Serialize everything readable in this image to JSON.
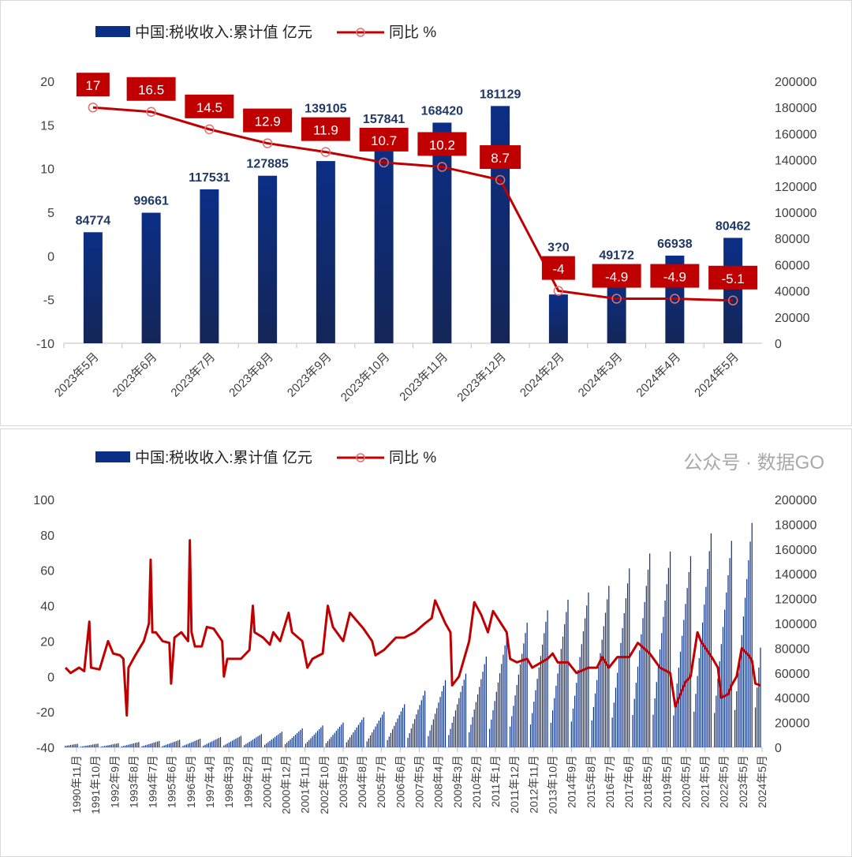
{
  "colors": {
    "bar": "#0b2e86",
    "bar_dark": "#142657",
    "line": "#c00000",
    "marker": "#e07070",
    "axis_text": "#404040",
    "label_navy": "#1f3864"
  },
  "watermark": "公众号 · 数据GO",
  "chart_data": [
    {
      "type": "bar+line",
      "legend": {
        "placement": "top",
        "bar": "中国:税收收入:累计值 亿元",
        "line": "同比 %"
      },
      "categories": [
        "2023年5月",
        "2023年6月",
        "2023年7月",
        "2023年8月",
        "2023年9月",
        "2023年10月",
        "2023年11月",
        "2023年12月",
        "2024年2月",
        "2024年3月",
        "2024年4月",
        "2024年5月"
      ],
      "bar_values": [
        84774,
        99661,
        117531,
        127885,
        139105,
        157841,
        168420,
        181129,
        37250,
        49172,
        66938,
        80462
      ],
      "bar_labels": [
        "84774",
        "99661",
        "117531",
        "127885",
        "139105",
        "157841",
        "168420",
        "181129",
        "3?0",
        "49172",
        "66938",
        "80462"
      ],
      "line_values": [
        17,
        16.5,
        14.5,
        12.9,
        11.9,
        10.7,
        10.2,
        8.7,
        -4,
        -4.9,
        -4.9,
        -5.1
      ],
      "line_labels": [
        "17",
        "16.5",
        "14.5",
        "12.9",
        "11.9",
        "10.7",
        "10.2",
        "8.7",
        "-4",
        "-4.9",
        "-4.9",
        "-5.1"
      ],
      "left_axis": {
        "range": [
          -10,
          20
        ],
        "ticks": [
          "-10",
          "-5",
          "0",
          "5",
          "10",
          "15",
          "20"
        ]
      },
      "right_axis": {
        "range": [
          0,
          200000
        ],
        "ticks": [
          "0",
          "20000",
          "40000",
          "60000",
          "80000",
          "100000",
          "120000",
          "140000",
          "160000",
          "180000",
          "200000"
        ]
      },
      "grid": false
    },
    {
      "type": "bar+line",
      "legend": {
        "placement": "top",
        "bar": "中国:税收收入:累计值 亿元",
        "line": "同比 %"
      },
      "x_tick_labels": [
        "1990年11月",
        "1991年10月",
        "1992年9月",
        "1993年8月",
        "1994年7月",
        "1995年6月",
        "1996年5月",
        "1997年4月",
        "1998年3月",
        "1999年2月",
        "2000年1月",
        "2000年12月",
        "2001年11月",
        "2002年10月",
        "2003年9月",
        "2004年8月",
        "2005年7月",
        "2006年6月",
        "2007年5月",
        "2008年4月",
        "2009年3月",
        "2010年2月",
        "2011年1月",
        "2011年12月",
        "2012年11月",
        "2013年10月",
        "2014年9月",
        "2015年8月",
        "2016年7月",
        "2017年6月",
        "2018年5月",
        "2019年5月",
        "2020年5月",
        "2021年5月",
        "2022年5月",
        "2023年5月",
        "2024年5月"
      ],
      "annual_tax_revenue": {
        "1990": 2822,
        "1991": 2990,
        "1992": 3297,
        "1993": 4255,
        "1994": 5127,
        "1995": 6038,
        "1996": 6910,
        "1997": 8234,
        "1998": 9263,
        "1999": 10683,
        "2000": 12582,
        "2001": 15301,
        "2002": 17636,
        "2003": 20017,
        "2004": 24166,
        "2005": 28779,
        "2006": 34804,
        "2007": 45622,
        "2008": 54224,
        "2009": 59522,
        "2010": 73211,
        "2011": 89738,
        "2012": 100614,
        "2013": 110531,
        "2014": 119175,
        "2015": 124922,
        "2016": 130361,
        "2017": 144370,
        "2018": 156403,
        "2019": 157992,
        "2020": 154312,
        "2021": 172736,
        "2022": 166614,
        "2023": 181129,
        "2024": 80462
      },
      "yoy_series": [
        [
          "1990-05",
          5
        ],
        [
          "1990-08",
          2
        ],
        [
          "1991-01",
          5
        ],
        [
          "1991-04",
          3
        ],
        [
          "1991-07",
          31
        ],
        [
          "1991-08",
          5
        ],
        [
          "1992-01",
          4
        ],
        [
          "1992-06",
          20
        ],
        [
          "1992-09",
          13
        ],
        [
          "1993-01",
          12
        ],
        [
          "1993-03",
          10
        ],
        [
          "1993-05",
          -22
        ],
        [
          "1993-06",
          5
        ],
        [
          "1993-10",
          12
        ],
        [
          "1994-03",
          20
        ],
        [
          "1994-06",
          30
        ],
        [
          "1994-07",
          66
        ],
        [
          "1994-08",
          25
        ],
        [
          "1994-10",
          25
        ],
        [
          "1995-02",
          20
        ],
        [
          "1995-06",
          19
        ],
        [
          "1995-07",
          -4
        ],
        [
          "1995-09",
          22
        ],
        [
          "1996-01",
          25
        ],
        [
          "1996-05",
          20
        ],
        [
          "1996-06",
          77
        ],
        [
          "1996-07",
          25
        ],
        [
          "1996-09",
          17
        ],
        [
          "1997-01",
          17
        ],
        [
          "1997-04",
          28
        ],
        [
          "1997-08",
          27
        ],
        [
          "1998-01",
          20
        ],
        [
          "1998-02",
          0
        ],
        [
          "1998-04",
          10
        ],
        [
          "1998-12",
          10
        ],
        [
          "1999-05",
          15
        ],
        [
          "1999-07",
          40
        ],
        [
          "1999-08",
          25
        ],
        [
          "2000-01",
          22
        ],
        [
          "2000-05",
          18
        ],
        [
          "2000-07",
          25
        ],
        [
          "2000-11",
          20
        ],
        [
          "2001-04",
          36
        ],
        [
          "2001-06",
          25
        ],
        [
          "2001-12",
          20
        ],
        [
          "2002-03",
          5
        ],
        [
          "2002-06",
          10
        ],
        [
          "2002-12",
          13
        ],
        [
          "2003-03",
          40
        ],
        [
          "2003-06",
          28
        ],
        [
          "2003-12",
          20
        ],
        [
          "2004-04",
          36
        ],
        [
          "2004-12",
          27
        ],
        [
          "2005-05",
          20
        ],
        [
          "2005-07",
          12
        ],
        [
          "2005-12",
          15
        ],
        [
          "2006-07",
          22
        ],
        [
          "2006-12",
          22
        ],
        [
          "2007-06",
          25
        ],
        [
          "2007-12",
          30
        ],
        [
          "2008-04",
          33
        ],
        [
          "2008-06",
          43
        ],
        [
          "2008-12",
          30
        ],
        [
          "2009-03",
          25
        ],
        [
          "2009-04",
          -5
        ],
        [
          "2009-08",
          0
        ],
        [
          "2010-02",
          20
        ],
        [
          "2010-05",
          42
        ],
        [
          "2010-09",
          35
        ],
        [
          "2011-01",
          25
        ],
        [
          "2011-04",
          37
        ],
        [
          "2011-12",
          25
        ],
        [
          "2012-02",
          10
        ],
        [
          "2012-06",
          8
        ],
        [
          "2012-12",
          10
        ],
        [
          "2013-03",
          5
        ],
        [
          "2013-12",
          10
        ],
        [
          "2014-03",
          13
        ],
        [
          "2014-06",
          8
        ],
        [
          "2014-12",
          8
        ],
        [
          "2015-05",
          2
        ],
        [
          "2015-12",
          5
        ],
        [
          "2016-05",
          5
        ],
        [
          "2016-08",
          11
        ],
        [
          "2016-12",
          5
        ],
        [
          "2017-05",
          11
        ],
        [
          "2017-12",
          11
        ],
        [
          "2018-05",
          19
        ],
        [
          "2018-12",
          13
        ],
        [
          "2019-06",
          5
        ],
        [
          "2019-12",
          2
        ],
        [
          "2020-03",
          -17
        ],
        [
          "2020-06",
          -10
        ],
        [
          "2020-09",
          -3
        ],
        [
          "2020-12",
          0
        ],
        [
          "2021-04",
          25
        ],
        [
          "2021-06",
          20
        ],
        [
          "2022-01",
          10
        ],
        [
          "2022-04",
          5
        ],
        [
          "2022-06",
          -12
        ],
        [
          "2022-10",
          -10
        ],
        [
          "2022-12",
          -5
        ],
        [
          "2023-03",
          0
        ],
        [
          "2023-06",
          16
        ],
        [
          "2023-10",
          12
        ],
        [
          "2023-12",
          9
        ],
        [
          "2024-02",
          -4
        ],
        [
          "2024-05",
          -5
        ]
      ],
      "left_axis": {
        "range": [
          -40,
          100
        ],
        "ticks": [
          "-40",
          "-20",
          "0",
          "20",
          "40",
          "60",
          "80",
          "100"
        ]
      },
      "right_axis": {
        "range": [
          0,
          200000
        ],
        "ticks": [
          "0",
          "20000",
          "40000",
          "60000",
          "80000",
          "100000",
          "120000",
          "140000",
          "160000",
          "180000",
          "200000"
        ]
      },
      "grid": false
    }
  ]
}
